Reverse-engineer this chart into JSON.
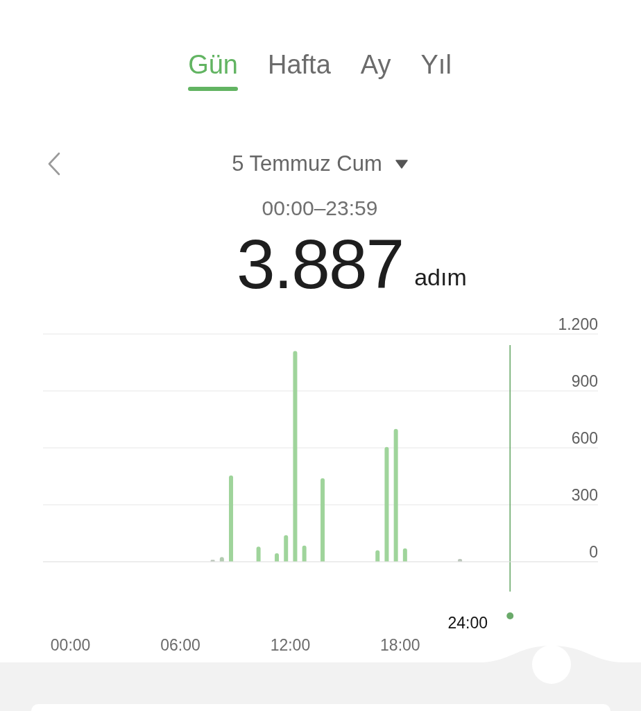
{
  "chart_data": {
    "type": "bar",
    "title": "5 Temmuz Cum",
    "subtitle": "00:00–23:59",
    "annotations": [
      "Gün",
      "Hafta",
      "Ay",
      "Yıl",
      "3.887",
      "adım"
    ],
    "x": [
      7.75,
      8.25,
      8.75,
      10.25,
      11.25,
      11.75,
      12.25,
      12.75,
      13.75,
      16.75,
      17.25,
      17.75,
      18.25,
      21.25
    ],
    "values": [
      10,
      25,
      455,
      80,
      45,
      140,
      1110,
      85,
      440,
      60,
      605,
      700,
      70,
      15
    ],
    "colors": [
      "#bcc6bb",
      "#b3cbb1",
      "#9fd49b",
      "#9fd49b",
      "#9fd49b",
      "#9fd49b",
      "#9fd49b",
      "#9fd49b",
      "#9fd49b",
      "#9fd49b",
      "#9fd49b",
      "#9fd49b",
      "#9fd49b",
      "#bcc6bb"
    ],
    "xlim": [
      -1.5,
      28.8
    ],
    "xticks": [
      {
        "value": 0,
        "label": "00:00"
      },
      {
        "value": 6,
        "label": "06:00"
      },
      {
        "value": 12,
        "label": "12:00"
      },
      {
        "value": 18,
        "label": "18:00"
      }
    ],
    "ylim": [
      0,
      1200
    ],
    "yticks": [
      0,
      300,
      600,
      900,
      {
        "value": 1200,
        "label": "1.200"
      }
    ],
    "grid": "y",
    "ref_lines": [
      {
        "axis": "x",
        "value": 24,
        "label": "24:00",
        "color": "#6aaa6a"
      }
    ]
  }
}
